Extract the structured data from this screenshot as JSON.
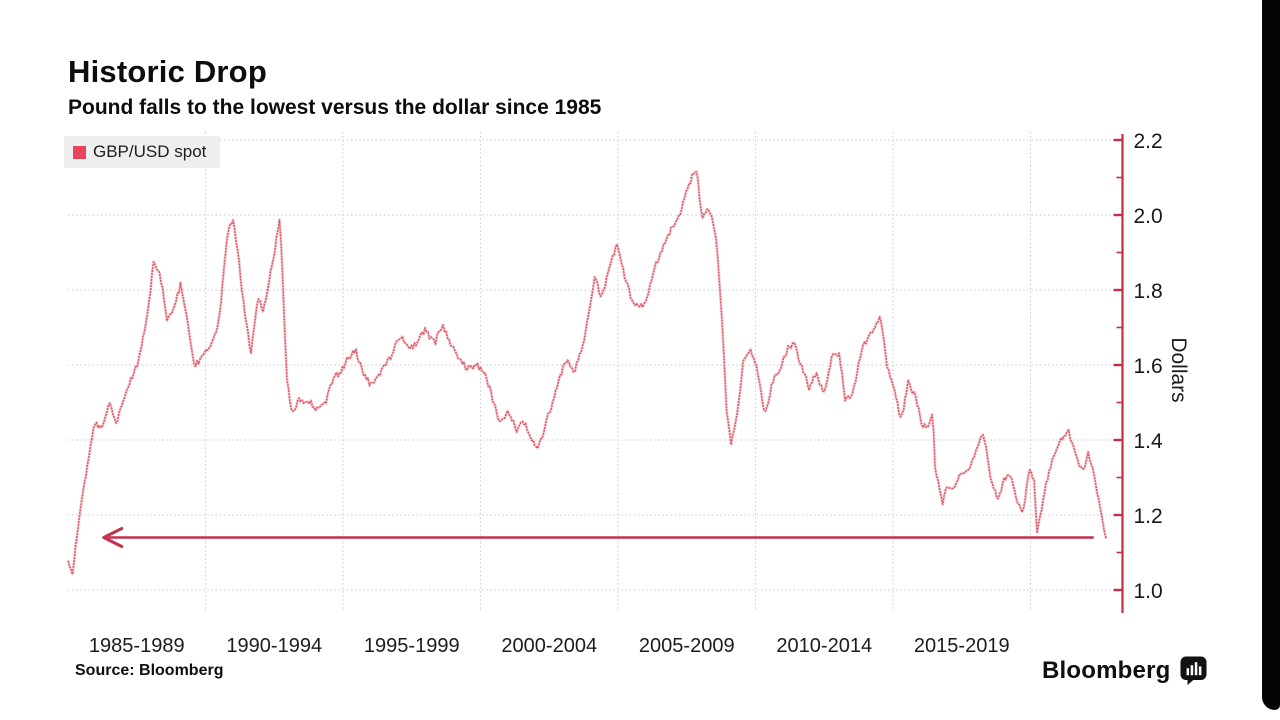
{
  "header": {
    "title": "Historic Drop",
    "subtitle": "Pound falls to the lowest versus the dollar since 1985"
  },
  "legend": {
    "label": "GBP/USD spot",
    "swatch_color": "#e8455a"
  },
  "chart_data": {
    "type": "line",
    "title": "Historic Drop",
    "subtitle": "Pound falls to the lowest versus the dollar since 1985",
    "ylabel": "Dollars",
    "xlabel": "",
    "ylim": [
      0.95,
      2.25
    ],
    "xlim": [
      1985,
      2022.85
    ],
    "y_ticks": [
      1.0,
      1.2,
      1.4,
      1.6,
      1.8,
      2.0,
      2.2
    ],
    "y_minor_ticks": [
      1.1,
      1.3,
      1.5,
      1.7,
      1.9,
      2.1
    ],
    "x_tick_labels": [
      "1985-1989",
      "1990-1994",
      "1995-1999",
      "2000-2004",
      "2005-2009",
      "2010-2014",
      "2015-2019"
    ],
    "x_gridline_years": [
      1990,
      1995,
      2000,
      2005,
      2010,
      2015,
      2020
    ],
    "grid": "dotted",
    "legend_position": "top-left",
    "axis_color": "#c13048",
    "grid_color": "#c8c8c8",
    "tick_label_color": "#191919",
    "series": [
      {
        "name": "GBP/USD spot",
        "color": "#d94f5e",
        "x": [
          1985.0,
          1985.15,
          1985.4,
          1985.7,
          1985.95,
          1986.2,
          1986.5,
          1986.75,
          1987.0,
          1987.3,
          1987.6,
          1987.95,
          1988.1,
          1988.35,
          1988.6,
          1988.9,
          1989.1,
          1989.35,
          1989.6,
          1989.9,
          1990.15,
          1990.5,
          1990.8,
          1991.0,
          1991.2,
          1991.45,
          1991.65,
          1991.9,
          1992.1,
          1992.35,
          1992.55,
          1992.7,
          1992.78,
          1992.95,
          1993.15,
          1993.4,
          1993.7,
          1994.0,
          1994.3,
          1994.6,
          1994.9,
          1995.2,
          1995.45,
          1995.7,
          1996.0,
          1996.3,
          1996.6,
          1996.9,
          1997.1,
          1997.4,
          1997.7,
          1998.0,
          1998.35,
          1998.6,
          1998.9,
          1999.2,
          1999.5,
          1999.8,
          2000.1,
          2000.4,
          2000.7,
          2001.0,
          2001.3,
          2001.55,
          2001.8,
          2002.05,
          2002.25,
          2002.5,
          2002.8,
          2003.1,
          2003.4,
          2003.7,
          2003.95,
          2004.15,
          2004.4,
          2004.65,
          2004.95,
          2005.2,
          2005.5,
          2005.75,
          2006.0,
          2006.3,
          2006.6,
          2006.9,
          2007.2,
          2007.5,
          2007.85,
          2008.05,
          2008.3,
          2008.55,
          2008.75,
          2008.95,
          2009.1,
          2009.3,
          2009.55,
          2009.8,
          2010.05,
          2010.35,
          2010.6,
          2010.9,
          2011.15,
          2011.4,
          2011.7,
          2011.95,
          2012.2,
          2012.5,
          2012.8,
          2013.05,
          2013.25,
          2013.55,
          2013.8,
          2014.05,
          2014.3,
          2014.55,
          2014.8,
          2015.05,
          2015.3,
          2015.55,
          2015.8,
          2016.05,
          2016.3,
          2016.45,
          2016.52,
          2016.65,
          2016.78,
          2016.95,
          2017.2,
          2017.5,
          2017.8,
          2018.05,
          2018.3,
          2018.55,
          2018.8,
          2019.05,
          2019.3,
          2019.55,
          2019.72,
          2019.95,
          2020.15,
          2020.23,
          2020.45,
          2020.7,
          2020.95,
          2021.15,
          2021.4,
          2021.65,
          2021.9,
          2022.1,
          2022.3,
          2022.5,
          2022.65,
          2022.75
        ],
        "y": [
          1.09,
          1.05,
          1.18,
          1.32,
          1.45,
          1.43,
          1.51,
          1.44,
          1.48,
          1.58,
          1.64,
          1.78,
          1.88,
          1.82,
          1.71,
          1.79,
          1.83,
          1.7,
          1.58,
          1.63,
          1.65,
          1.74,
          1.93,
          1.97,
          1.88,
          1.73,
          1.64,
          1.78,
          1.76,
          1.86,
          1.93,
          2.0,
          1.88,
          1.57,
          1.47,
          1.51,
          1.48,
          1.47,
          1.5,
          1.55,
          1.57,
          1.61,
          1.63,
          1.57,
          1.53,
          1.55,
          1.6,
          1.65,
          1.66,
          1.62,
          1.66,
          1.7,
          1.67,
          1.7,
          1.65,
          1.62,
          1.6,
          1.62,
          1.58,
          1.51,
          1.44,
          1.47,
          1.42,
          1.44,
          1.41,
          1.38,
          1.43,
          1.49,
          1.56,
          1.6,
          1.57,
          1.64,
          1.73,
          1.82,
          1.78,
          1.86,
          1.93,
          1.86,
          1.76,
          1.74,
          1.76,
          1.85,
          1.91,
          1.96,
          1.99,
          2.04,
          2.11,
          1.97,
          2.0,
          1.94,
          1.75,
          1.48,
          1.39,
          1.46,
          1.63,
          1.64,
          1.57,
          1.45,
          1.54,
          1.58,
          1.63,
          1.66,
          1.59,
          1.54,
          1.59,
          1.55,
          1.62,
          1.61,
          1.51,
          1.54,
          1.62,
          1.66,
          1.69,
          1.72,
          1.59,
          1.53,
          1.47,
          1.57,
          1.51,
          1.43,
          1.44,
          1.49,
          1.33,
          1.29,
          1.21,
          1.25,
          1.26,
          1.31,
          1.34,
          1.4,
          1.43,
          1.32,
          1.27,
          1.31,
          1.29,
          1.22,
          1.2,
          1.31,
          1.3,
          1.15,
          1.25,
          1.32,
          1.37,
          1.4,
          1.42,
          1.37,
          1.34,
          1.37,
          1.3,
          1.22,
          1.16,
          1.12
        ]
      }
    ],
    "annotations": [
      {
        "type": "arrow",
        "direction": "left",
        "y": 1.14,
        "x_from": 2022.3,
        "x_to": 1986.3,
        "color": "#c2304a"
      }
    ]
  },
  "footer": {
    "source": "Source: Bloomberg",
    "brand": "Bloomberg",
    "brand_icon": "bloomberg-chart-bubble-icon"
  }
}
